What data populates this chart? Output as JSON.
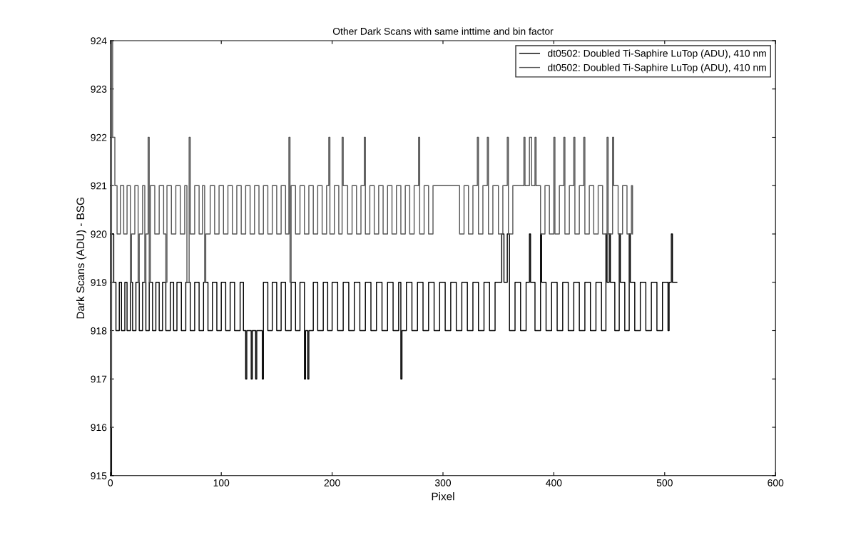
{
  "chart_data": {
    "type": "step",
    "title": "Other Dark Scans with same inttime and bin factor",
    "xlabel": "Pixel",
    "ylabel": "Dark Scans (ADU) - BSG",
    "xlim": [
      0,
      600
    ],
    "xticks": [
      0,
      100,
      200,
      300,
      400,
      500,
      600
    ],
    "ylim": [
      915,
      924
    ],
    "yticks": [
      915,
      916,
      917,
      918,
      919,
      920,
      921,
      922,
      923,
      924
    ],
    "grid": false,
    "legend": "top right",
    "line_style": "solid",
    "marker": "none",
    "series": [
      {
        "name": "dt0502: Doubled Ti-Saphire LuTop (ADU), 410 nm",
        "color": "#000000",
        "x": [
          0,
          1,
          3,
          5,
          8,
          10,
          13,
          15,
          18,
          20,
          23,
          26,
          29,
          32,
          35,
          38,
          41,
          44,
          47,
          50,
          54,
          57,
          60,
          64,
          68,
          72,
          76,
          80,
          84,
          88,
          92,
          96,
          100,
          104,
          108,
          112,
          117,
          120,
          122,
          123,
          127,
          128,
          131,
          132,
          137,
          138,
          142,
          146,
          150,
          154,
          158,
          163,
          167,
          171,
          175,
          176,
          178,
          179,
          183,
          187,
          192,
          196,
          200,
          205,
          210,
          215,
          220,
          225,
          230,
          235,
          240,
          245,
          250,
          255,
          260,
          262,
          263,
          267,
          272,
          277,
          282,
          287,
          292,
          297,
          302,
          307,
          312,
          317,
          322,
          327,
          332,
          337,
          342,
          347,
          353,
          355,
          358,
          360,
          365,
          370,
          375,
          378,
          379,
          383,
          388,
          389,
          393,
          398,
          403,
          408,
          413,
          418,
          423,
          428,
          433,
          438,
          443,
          447,
          448,
          450,
          451,
          455,
          459,
          460,
          464,
          468,
          469,
          473,
          478,
          483,
          488,
          493,
          498,
          503,
          504,
          506,
          507,
          511
        ],
        "values": [
          915,
          920,
          919,
          918,
          919,
          918,
          919,
          918,
          919,
          918,
          919,
          918,
          919,
          918,
          919,
          918,
          919,
          918,
          919,
          918,
          919,
          918,
          919,
          918,
          919,
          918,
          919,
          918,
          919,
          918,
          919,
          918,
          919,
          918,
          919,
          918,
          919,
          918,
          917,
          918,
          917,
          918,
          917,
          918,
          917,
          919,
          918,
          919,
          918,
          919,
          918,
          919,
          918,
          919,
          917,
          918,
          917,
          918,
          919,
          918,
          919,
          918,
          919,
          918,
          919,
          918,
          919,
          918,
          919,
          918,
          919,
          918,
          919,
          918,
          919,
          917,
          918,
          919,
          918,
          919,
          918,
          919,
          918,
          919,
          918,
          919,
          918,
          919,
          918,
          919,
          918,
          919,
          918,
          919,
          920,
          919,
          920,
          918,
          919,
          918,
          919,
          920,
          919,
          918,
          920,
          919,
          918,
          919,
          918,
          919,
          918,
          919,
          918,
          919,
          918,
          919,
          918,
          920,
          919,
          920,
          919,
          918,
          920,
          919,
          918,
          920,
          919,
          918,
          919,
          918,
          919,
          918,
          919,
          918,
          919,
          920,
          919,
          919
        ]
      },
      {
        "name": "dt0502: Doubled Ti-Saphire LuTop (ADU), 410 nm",
        "color": "#555555",
        "x": [
          0,
          1,
          2,
          4,
          6,
          9,
          12,
          15,
          18,
          19,
          22,
          25,
          26,
          29,
          31,
          32,
          34,
          35,
          36,
          40,
          44,
          48,
          50,
          51,
          55,
          59,
          63,
          67,
          69,
          71,
          72,
          76,
          80,
          83,
          85,
          86,
          90,
          94,
          98,
          102,
          106,
          110,
          114,
          118,
          122,
          126,
          130,
          134,
          138,
          142,
          146,
          150,
          154,
          158,
          161,
          162,
          163,
          167,
          171,
          175,
          179,
          183,
          187,
          191,
          195,
          197,
          198,
          202,
          206,
          209,
          210,
          214,
          218,
          222,
          226,
          229,
          230,
          234,
          238,
          242,
          246,
          250,
          254,
          258,
          262,
          266,
          270,
          274,
          278,
          279,
          283,
          287,
          291,
          295,
          300,
          310,
          315,
          319,
          323,
          327,
          331,
          332,
          336,
          340,
          341,
          345,
          350,
          354,
          358,
          359,
          363,
          368,
          373,
          374,
          378,
          380,
          383,
          384,
          388,
          392,
          396,
          400,
          401,
          405,
          409,
          410,
          414,
          418,
          419,
          423,
          427,
          428,
          432,
          436,
          440,
          444,
          448,
          449,
          453,
          454,
          458,
          462,
          466,
          470,
          471
        ],
        "values": [
          916,
          924,
          922,
          921,
          920,
          921,
          920,
          921,
          919,
          920,
          921,
          919,
          920,
          921,
          919,
          920,
          922,
          919,
          921,
          920,
          921,
          920,
          919,
          921,
          920,
          921,
          920,
          921,
          919,
          922,
          920,
          921,
          920,
          921,
          919,
          920,
          921,
          920,
          921,
          920,
          921,
          920,
          921,
          920,
          921,
          920,
          921,
          920,
          921,
          920,
          921,
          920,
          921,
          920,
          922,
          919,
          921,
          920,
          921,
          920,
          921,
          920,
          921,
          920,
          921,
          922,
          920,
          921,
          920,
          922,
          921,
          920,
          921,
          920,
          921,
          922,
          920,
          921,
          920,
          921,
          920,
          921,
          920,
          921,
          920,
          921,
          920,
          921,
          922,
          920,
          921,
          920,
          921,
          921,
          921,
          921,
          920,
          921,
          920,
          921,
          922,
          920,
          921,
          922,
          920,
          921,
          920,
          921,
          922,
          920,
          921,
          921,
          922,
          921,
          922,
          921,
          922,
          921,
          920,
          921,
          920,
          922,
          920,
          921,
          922,
          920,
          921,
          922,
          920,
          921,
          922,
          920,
          921,
          920,
          921,
          920,
          922,
          920,
          922,
          921,
          920,
          921,
          920,
          921,
          920
        ]
      }
    ]
  }
}
